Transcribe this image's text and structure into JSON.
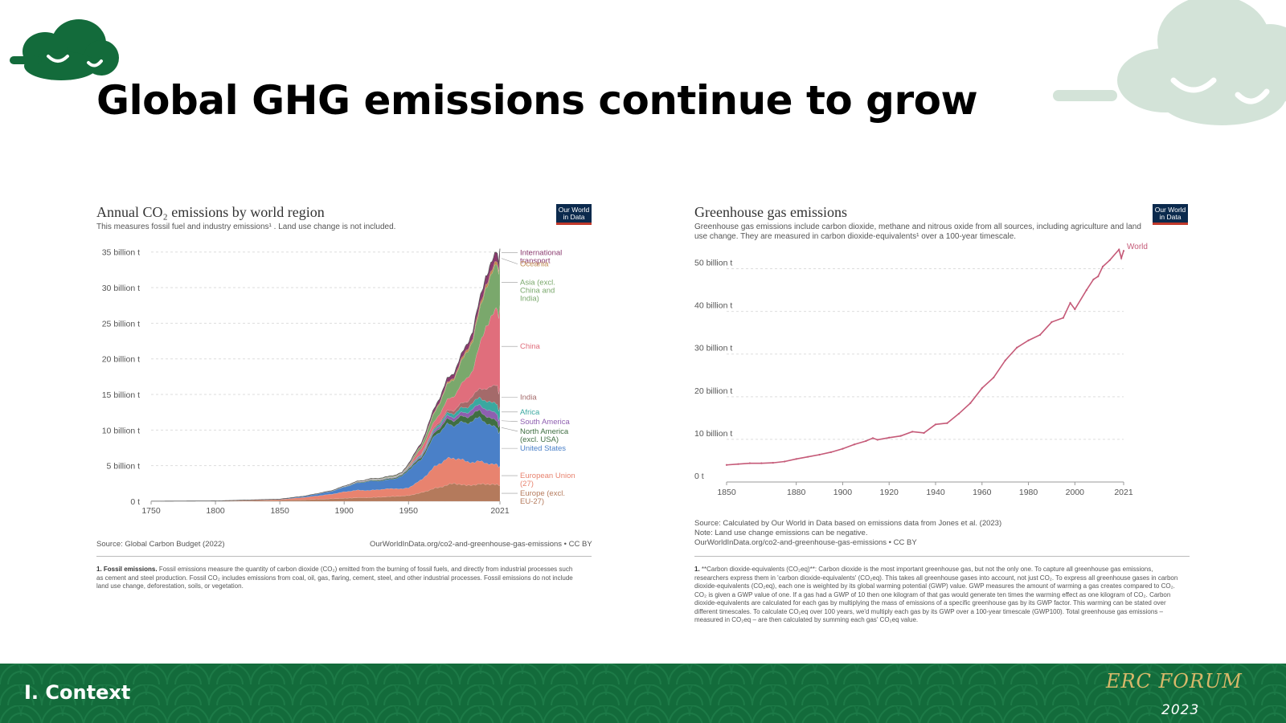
{
  "slide": {
    "title": "Global GHG emissions continue to grow",
    "section": "I.  Context",
    "brand": {
      "name": "ERC FORUM",
      "year": "2023"
    },
    "colors": {
      "brand_green": "#136b3b",
      "brand_gold": "#d8b86a",
      "deco_cloud": "#d3e3d8"
    }
  },
  "owid_badge": {
    "line1": "Our World",
    "line2": "in Data"
  },
  "left_chart": {
    "title": "Annual CO₂ emissions by world region",
    "subtitle": "This measures fossil fuel and industry emissions¹ . Land use change is not included.",
    "source": "Source: Global Carbon Budget (2022)",
    "link": "OurWorldInData.org/co2-and-greenhouse-gas-emissions • CC BY",
    "footnote_label": "1. Fossil emissions.",
    "footnote_text": "Fossil emissions measure the quantity of carbon dioxide (CO₂) emitted from the burning of fossil fuels, and directly from industrial processes such as cement and steel production. Fossil CO₂ includes emissions from coal, oil, gas, flaring, cement, steel, and other industrial processes. Fossil emissions do not include land use change, deforestation, soils, or vegetation."
  },
  "right_chart": {
    "title": "Greenhouse gas emissions",
    "subtitle": "Greenhouse gas emissions include carbon dioxide, methane and nitrous oxide from all sources, including agriculture and land use change. They are measured in carbon dioxide-equivalents¹ over a 100-year timescale.",
    "source_lines": [
      "Source: Calculated by Our World in Data based on emissions data from Jones et al. (2023)",
      "Note: Land use change emissions can be negative.",
      "OurWorldInData.org/co2-and-greenhouse-gas-emissions • CC BY"
    ],
    "footnote_label": "1.",
    "footnote_text": "**Carbon dioxide-equivalents (CO₂eq)**: Carbon dioxide is the most important greenhouse gas, but not the only one. To capture all greenhouse gas emissions, researchers express them in 'carbon dioxide-equivalents' (CO₂eq). This takes all greenhouse gases into account, not just CO₂. To express all greenhouse gases in carbon dioxide-equivalents (CO₂eq), each one is weighted by its global warming potential (GWP) value. GWP measures the amount of warming a gas creates compared to CO₂. CO₂ is given a GWP value of one. If a gas had a GWP of 10 then one kilogram of that gas would generate ten times the warming effect as one kilogram of CO₂. Carbon dioxide-equivalents are calculated for each gas by multiplying the mass of emissions of a specific greenhouse gas by its GWP factor. This warming can be stated over different timescales. To calculate CO₂eq over 100 years, we'd multiply each gas by its GWP over a 100-year timescale (GWP100). Total greenhouse gas emissions – measured in CO₂eq – are then calculated by summing each gas' CO₂eq value."
  },
  "chart_data": [
    {
      "type": "area",
      "stacked": true,
      "title": "Annual CO₂ emissions by world region",
      "ylim": [
        0,
        37
      ],
      "xlim": [
        1750,
        2021
      ],
      "y_ticks": [
        0,
        5,
        10,
        15,
        20,
        25,
        30,
        35
      ],
      "y_tick_labels": [
        "0 t",
        "5 billion t",
        "10 billion t",
        "15 billion t",
        "20 billion t",
        "25 billion t",
        "30 billion t",
        "35 billion t"
      ],
      "x_ticks": [
        1750,
        1800,
        1850,
        1900,
        1950,
        2021
      ],
      "grid": true,
      "legend": "right, inline labels",
      "x": [
        1750,
        1800,
        1850,
        1870,
        1890,
        1900,
        1910,
        1920,
        1930,
        1940,
        1945,
        1950,
        1960,
        1970,
        1975,
        1980,
        1985,
        1990,
        1995,
        2000,
        2005,
        2010,
        2015,
        2019,
        2020,
        2021
      ],
      "series": [
        {
          "name": "Europe (excl. EU-27)",
          "color": "#b47a5c",
          "values": [
            0.01,
            0.04,
            0.15,
            0.22,
            0.34,
            0.42,
            0.5,
            0.52,
            0.6,
            0.7,
            0.72,
            0.8,
            1.2,
            1.8,
            2.0,
            2.3,
            2.5,
            2.4,
            2.2,
            2.3,
            2.4,
            2.4,
            2.4,
            2.3,
            2.2,
            2.3
          ]
        },
        {
          "name": "European Union (27)",
          "color": "#e8836f",
          "values": [
            0.0,
            0.01,
            0.1,
            0.35,
            0.65,
            0.9,
            1.05,
            1.0,
            1.1,
            1.1,
            1.0,
            1.1,
            1.8,
            3.0,
            3.4,
            3.7,
            3.5,
            3.6,
            3.3,
            3.2,
            3.2,
            3.0,
            2.8,
            2.8,
            2.6,
            2.7
          ]
        },
        {
          "name": "United States",
          "color": "#4a80c8",
          "values": [
            0.0,
            0.0,
            0.05,
            0.15,
            0.4,
            0.66,
            1.0,
            1.3,
            1.2,
            1.4,
            1.8,
            2.5,
            2.9,
            4.3,
            4.5,
            4.8,
            4.6,
            5.1,
            5.4,
            5.9,
            6.1,
            5.7,
            5.3,
            5.2,
            4.7,
            5.0
          ]
        },
        {
          "name": "North America (excl. USA)",
          "color": "#3f6e42",
          "values": [
            0,
            0,
            0,
            0.01,
            0.03,
            0.05,
            0.08,
            0.1,
            0.12,
            0.14,
            0.16,
            0.2,
            0.3,
            0.5,
            0.6,
            0.7,
            0.72,
            0.8,
            0.85,
            0.92,
            0.98,
            0.95,
            0.97,
            0.97,
            0.9,
            0.93
          ]
        },
        {
          "name": "South America",
          "color": "#8e5fb0",
          "values": [
            0,
            0,
            0,
            0.01,
            0.02,
            0.03,
            0.04,
            0.05,
            0.06,
            0.07,
            0.07,
            0.1,
            0.2,
            0.3,
            0.35,
            0.45,
            0.47,
            0.5,
            0.6,
            0.75,
            0.8,
            0.95,
            1.05,
            1.0,
            0.9,
            1.0
          ]
        },
        {
          "name": "Africa",
          "color": "#3aa8a0",
          "values": [
            0,
            0,
            0,
            0,
            0.01,
            0.01,
            0.02,
            0.03,
            0.04,
            0.05,
            0.05,
            0.1,
            0.15,
            0.25,
            0.3,
            0.4,
            0.5,
            0.65,
            0.72,
            0.85,
            1.0,
            1.15,
            1.3,
            1.4,
            1.3,
            1.4
          ]
        },
        {
          "name": "India",
          "color": "#a46a6a",
          "values": [
            0,
            0,
            0,
            0.01,
            0.02,
            0.02,
            0.03,
            0.03,
            0.04,
            0.05,
            0.05,
            0.1,
            0.12,
            0.2,
            0.25,
            0.3,
            0.45,
            0.6,
            0.8,
            1.0,
            1.2,
            1.7,
            2.3,
            2.6,
            2.4,
            2.7
          ]
        },
        {
          "name": "China",
          "color": "#e06e7c",
          "values": [
            0,
            0,
            0,
            0,
            0,
            0.01,
            0.02,
            0.02,
            0.02,
            0.03,
            0.03,
            0.08,
            0.8,
            0.8,
            1.2,
            1.5,
            2.0,
            2.5,
            3.3,
            3.6,
            6.0,
            8.8,
            9.9,
            10.7,
            10.9,
            11.5
          ]
        },
        {
          "name": "Asia (excl. China and India)",
          "color": "#7aa86c",
          "values": [
            0,
            0,
            0,
            0,
            0.01,
            0.02,
            0.03,
            0.05,
            0.07,
            0.1,
            0.05,
            0.15,
            0.4,
            1.2,
            1.6,
            2.1,
            2.4,
            3.0,
            3.6,
            4.2,
            4.8,
            5.5,
            5.9,
            6.3,
            6.1,
            6.4
          ]
        },
        {
          "name": "Oceania",
          "color": "#c08a50",
          "values": [
            0,
            0,
            0,
            0,
            0,
            0.01,
            0.01,
            0.01,
            0.02,
            0.02,
            0.02,
            0.04,
            0.08,
            0.15,
            0.18,
            0.22,
            0.25,
            0.3,
            0.35,
            0.4,
            0.45,
            0.47,
            0.47,
            0.47,
            0.45,
            0.45
          ]
        },
        {
          "name": "International transport",
          "color": "#8a3a6e",
          "values": [
            0,
            0,
            0,
            0,
            0,
            0,
            0.01,
            0.02,
            0.03,
            0.05,
            0.07,
            0.15,
            0.25,
            0.5,
            0.55,
            0.6,
            0.6,
            0.65,
            0.75,
            0.9,
            1.05,
            1.15,
            1.2,
            1.3,
            1.0,
            1.1
          ]
        }
      ]
    },
    {
      "type": "line",
      "title": "Greenhouse gas emissions",
      "ylim": [
        0,
        55
      ],
      "xlim": [
        1850,
        2021
      ],
      "y_ticks": [
        0,
        10,
        20,
        30,
        40,
        50
      ],
      "y_tick_labels": [
        "0 t",
        "10 billion t",
        "20 billion t",
        "30 billion t",
        "40 billion t",
        "50 billion t"
      ],
      "x_ticks": [
        1850,
        1880,
        1900,
        1920,
        1940,
        1960,
        1980,
        2000,
        2021
      ],
      "grid": true,
      "series": [
        {
          "name": "World",
          "color": "#c55a78",
          "x": [
            1850,
            1855,
            1860,
            1865,
            1870,
            1875,
            1880,
            1885,
            1890,
            1895,
            1900,
            1905,
            1910,
            1913,
            1915,
            1920,
            1925,
            1930,
            1935,
            1940,
            1945,
            1950,
            1955,
            1960,
            1965,
            1970,
            1975,
            1980,
            1985,
            1990,
            1995,
            1998,
            2000,
            2005,
            2008,
            2010,
            2012,
            2015,
            2019,
            2020,
            2021
          ],
          "values": [
            4.0,
            4.2,
            4.4,
            4.4,
            4.5,
            4.8,
            5.4,
            5.9,
            6.4,
            7.0,
            7.8,
            8.8,
            9.6,
            10.3,
            9.9,
            10.4,
            10.8,
            11.8,
            11.5,
            13.5,
            13.8,
            16.0,
            18.5,
            22.0,
            24.5,
            28.5,
            31.5,
            33.2,
            34.5,
            37.5,
            38.5,
            42.0,
            40.5,
            45.0,
            47.5,
            48.2,
            50.5,
            52.0,
            54.5,
            52.5,
            54.2
          ]
        }
      ]
    }
  ]
}
